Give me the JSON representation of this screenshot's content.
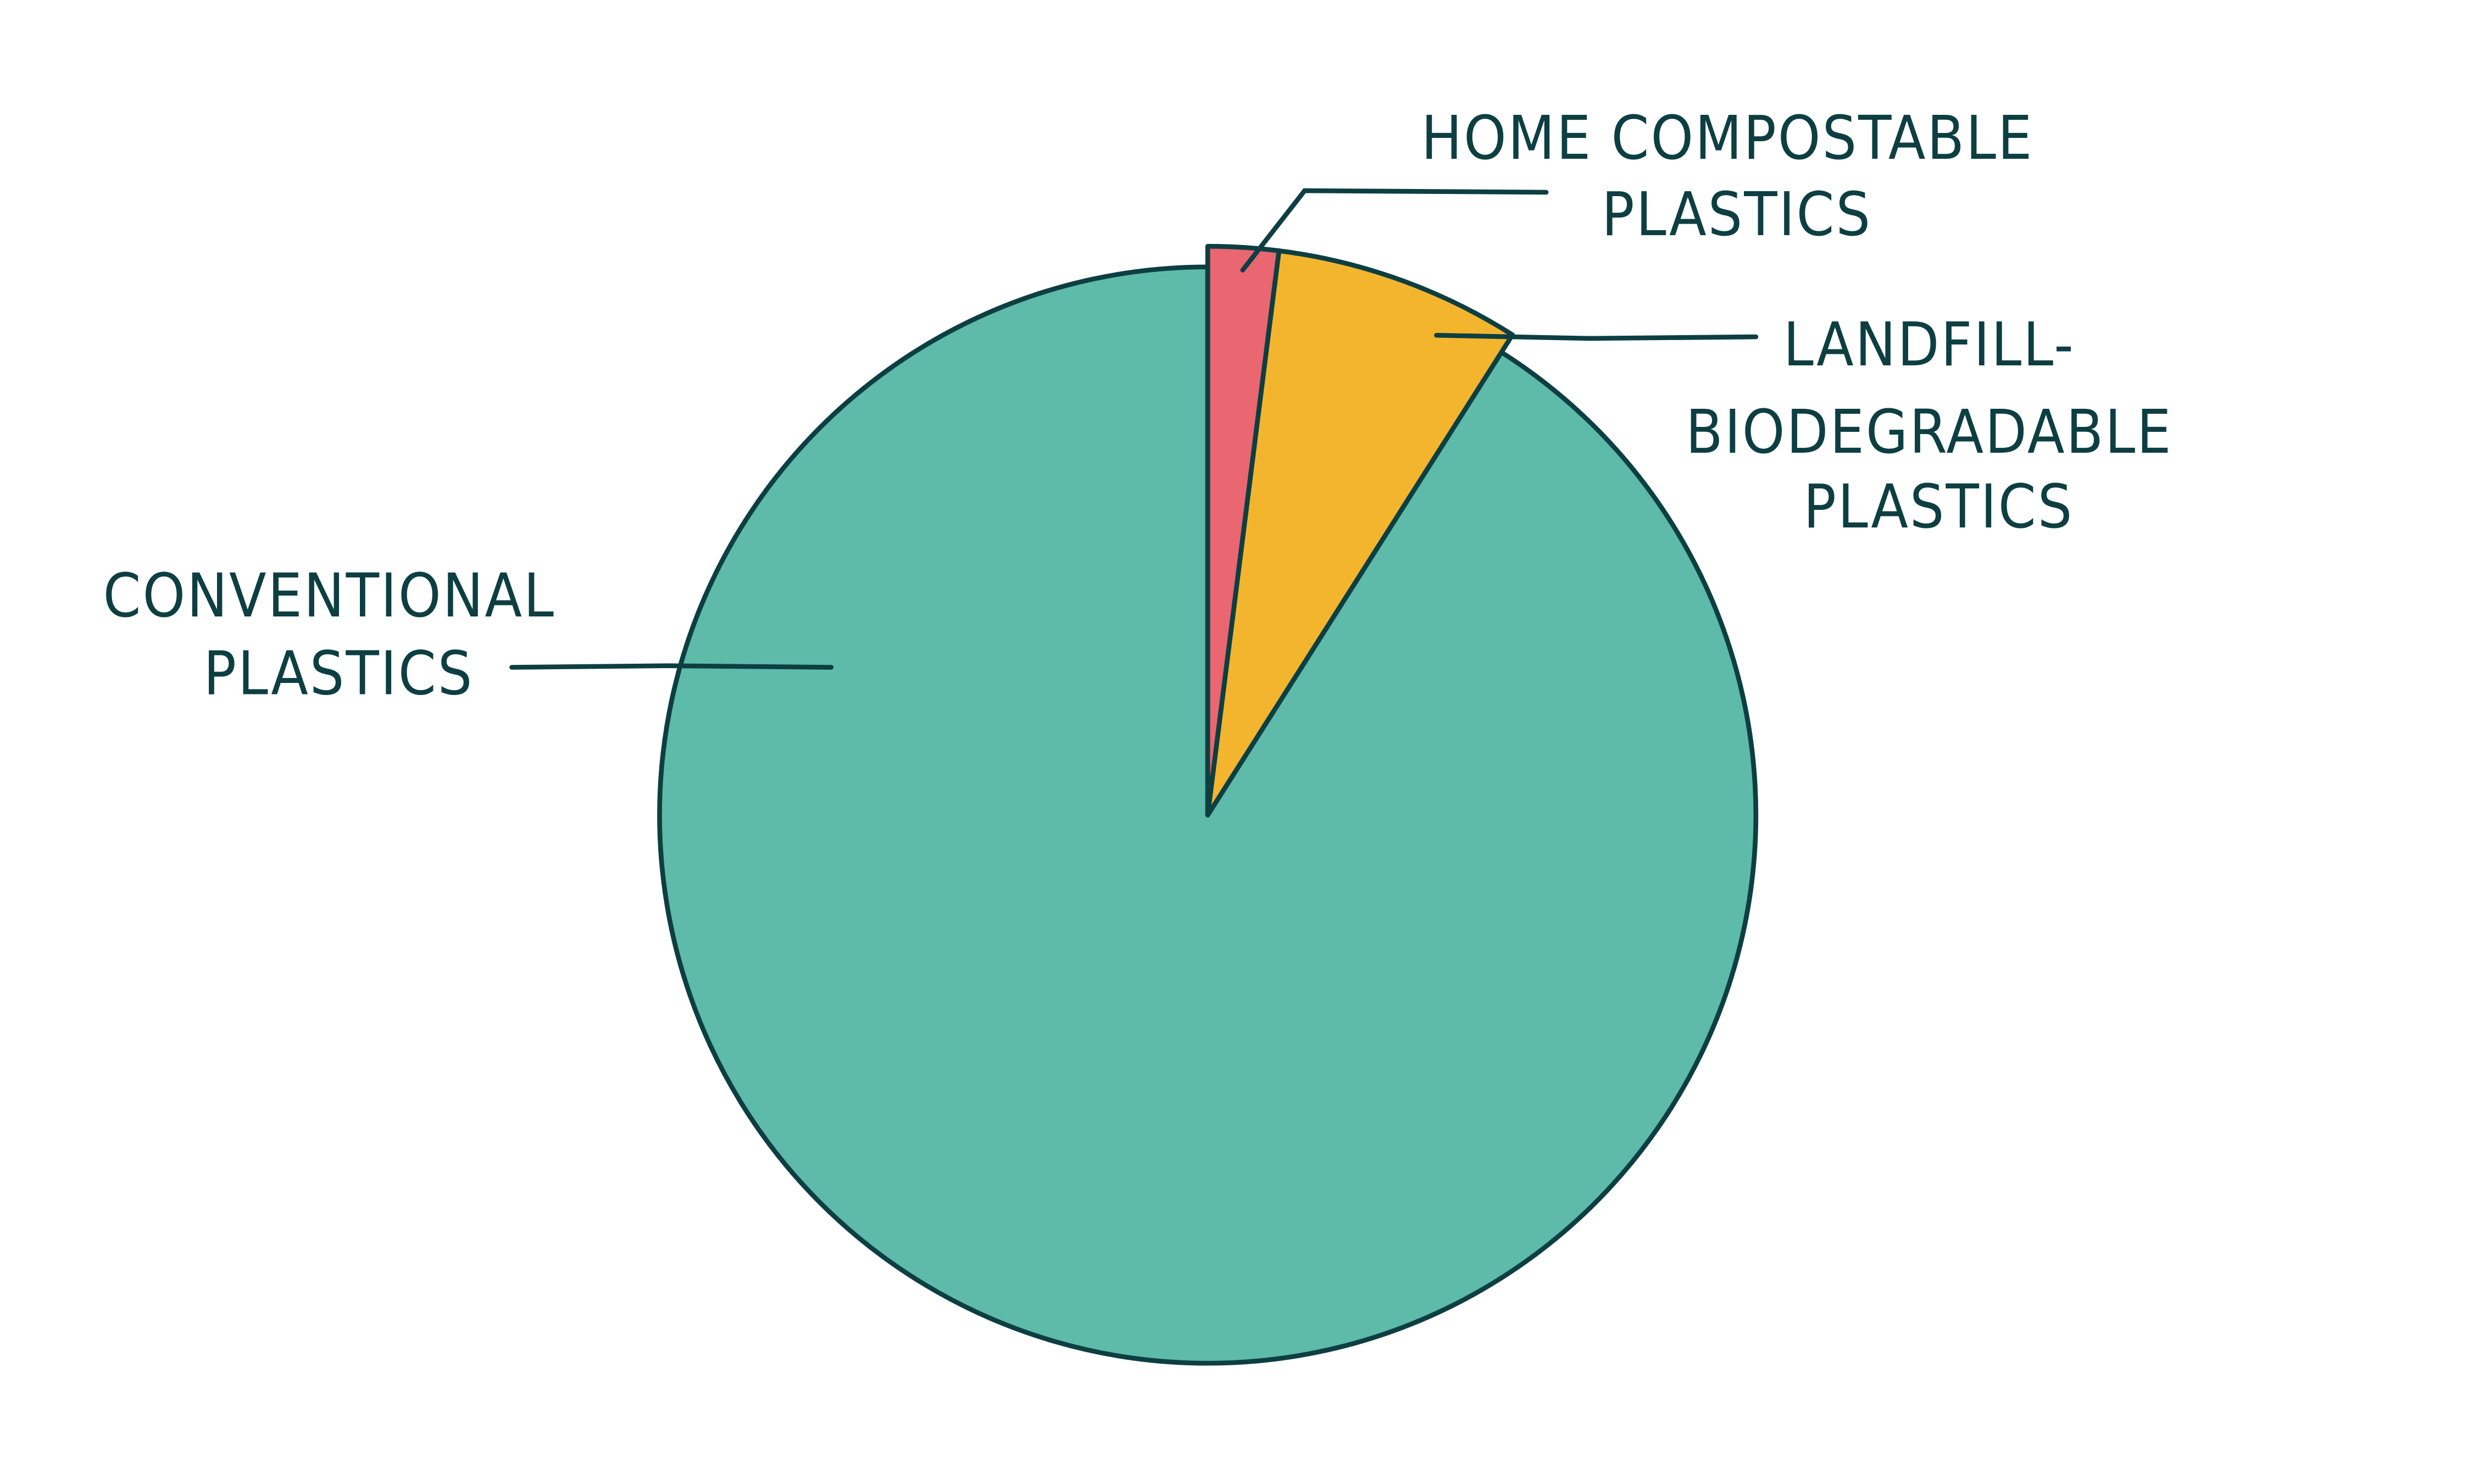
{
  "chart_data": {
    "type": "pie",
    "title": "",
    "slices": [
      {
        "label": "HOME COMPOSTABLE PLASTICS",
        "lines": [
          "HOME COMPOSTABLE",
          "PLASTICS"
        ],
        "value": 2,
        "color": "#ea6670",
        "exploded": true
      },
      {
        "label": "LANDFILL-BIODEGRADABLE PLASTICS",
        "lines": [
          "LANDFILL-",
          "BIODEGRADABLE",
          "PLASTICS"
        ],
        "value": 7,
        "color": "#f4b52e",
        "exploded": true
      },
      {
        "label": "CONVENTIONAL PLASTICS",
        "lines": [
          "CONVENTIONAL",
          "PLASTICS"
        ],
        "value": 91,
        "color": "#5ebaa9",
        "exploded": false
      }
    ],
    "start_angle": "12 o'clock",
    "direction": "clockwise",
    "outline_color": "#0d3f42",
    "legend": "none (callout labels)"
  }
}
